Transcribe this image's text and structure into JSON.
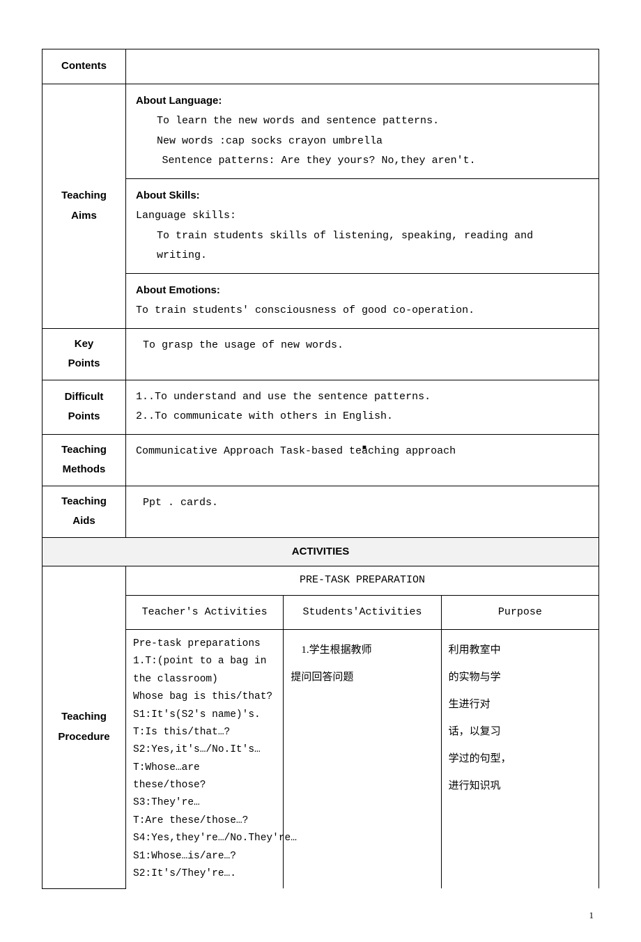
{
  "labels": {
    "contents": "Contents",
    "teaching_aims": "Teaching Aims",
    "key_points": "Key Points",
    "difficult_points": "Difficult Points",
    "teaching_methods": "Teaching Methods",
    "teaching_aids": "Teaching Aids",
    "activities": "ACTIVITIES",
    "teaching_procedure": "Teaching Procedure",
    "pretask": "PRE-TASK PREPARATION",
    "teacher_activities": "Teacher's Activities",
    "students_activities": "Students'Activities",
    "purpose": "Purpose"
  },
  "aims": {
    "lang_head": "About Language:",
    "lang_line1": "To learn the new words and sentence patterns.",
    "lang_line2": "New words :cap  socks  crayon umbrella",
    "lang_line3": "Sentence patterns: Are they yours?  No,they aren't.",
    "skills_head": "About Skills:",
    "skills_line1": "Language skills:",
    "skills_line2": "To train students skills of listening, speaking, reading and writing.",
    "emotions_head": "About Emotions:",
    "emotions_line1": "To train students' consciousness of good co-operation."
  },
  "key_points_text": "To grasp the usage of new words.",
  "difficult_points": {
    "l1": "1..To understand and use the sentence patterns.",
    "l2": "2..To communicate with others in English."
  },
  "teaching_methods_text": "Communicative Approach  Task-based teaching approach",
  "teaching_aids_text": "Ppt .  cards.",
  "teacher_acts": {
    "l0": "Pre-task preparations",
    "l1": "1.T:(point to a bag in the classroom)",
    "l2": "Whose bag is this/that?",
    "l3": "S1:It's(S2's name)'s.",
    "l4": "T:Is this/that…?",
    "l5": "S2:Yes,it's…/No.It's…",
    "l6": "T:Whose…are these/those?",
    "l7": "S3:They're…",
    "l8": "T:Are these/those…?",
    "l9": "S4:Yes,they're…/No.They're…",
    "l10": "S1:Whose…is/are…?",
    "l11": "S2:It's/They're…."
  },
  "students_acts": {
    "l1": "1.学生根据教师",
    "l2": "提问回答问题"
  },
  "purpose_lines": {
    "l1": "利用教室中",
    "l2": "的实物与学",
    "l3": "生进行对",
    "l4": "话，以复习",
    "l5": "学过的句型，",
    "l6": "进行知识巩"
  },
  "page_number": "1"
}
